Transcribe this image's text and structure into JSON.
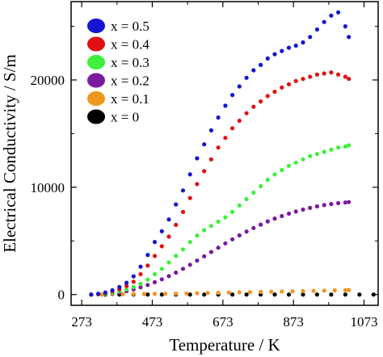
{
  "chart_data": {
    "type": "scatter",
    "xlabel": "Temperature / K",
    "ylabel": "Electrical Conductivity / S/m",
    "xlim": [
      243,
      1113
    ],
    "ylim": [
      -1000,
      27300
    ],
    "xticks": [
      273,
      473,
      673,
      873,
      1073
    ],
    "yticks": [
      0,
      10000,
      20000
    ],
    "grid": false,
    "legend_position": "top-left",
    "series": [
      {
        "name": "x = 0.5",
        "color": "#1414d2",
        "x": [
          300,
          320,
          340,
          360,
          380,
          400,
          420,
          440,
          460,
          480,
          500,
          520,
          540,
          560,
          580,
          600,
          620,
          640,
          660,
          680,
          700,
          720,
          740,
          760,
          780,
          800,
          820,
          840,
          860,
          880,
          900,
          920,
          940,
          960,
          980,
          1000,
          1020,
          1030
        ],
        "y": [
          0,
          80,
          200,
          400,
          700,
          1100,
          1700,
          2600,
          3700,
          4900,
          5900,
          7000,
          8400,
          9700,
          11200,
          12700,
          14000,
          15300,
          16500,
          17600,
          18600,
          19400,
          20200,
          20900,
          21400,
          22000,
          22400,
          22700,
          23000,
          23200,
          23500,
          24000,
          24700,
          25400,
          26000,
          26300,
          25000,
          24000
        ]
      },
      {
        "name": "x = 0.4",
        "color": "#e01010",
        "x": [
          300,
          320,
          340,
          360,
          380,
          400,
          420,
          440,
          460,
          480,
          500,
          520,
          540,
          560,
          580,
          600,
          620,
          640,
          660,
          680,
          700,
          720,
          740,
          760,
          780,
          800,
          820,
          840,
          860,
          880,
          900,
          920,
          940,
          960,
          980,
          1000,
          1020,
          1030
        ],
        "y": [
          0,
          50,
          150,
          300,
          500,
          800,
          1200,
          1900,
          2700,
          3600,
          4500,
          5400,
          6500,
          7700,
          9000,
          10300,
          11500,
          12600,
          13700,
          14600,
          15500,
          16200,
          16900,
          17500,
          18000,
          18500,
          18900,
          19300,
          19600,
          19900,
          20100,
          20300,
          20500,
          20600,
          20700,
          20500,
          20300,
          20100
        ]
      },
      {
        "name": "x = 0.3",
        "color": "#3cf03c",
        "x": [
          300,
          320,
          340,
          360,
          380,
          400,
          420,
          440,
          460,
          480,
          500,
          520,
          540,
          560,
          580,
          600,
          620,
          640,
          660,
          680,
          700,
          720,
          740,
          760,
          780,
          800,
          820,
          840,
          860,
          880,
          900,
          920,
          940,
          960,
          980,
          1000,
          1020,
          1030
        ],
        "y": [
          0,
          30,
          80,
          160,
          300,
          480,
          700,
          1000,
          1400,
          1900,
          2400,
          3000,
          3600,
          4200,
          4900,
          5500,
          6000,
          6400,
          6800,
          7200,
          7700,
          8300,
          8900,
          9500,
          10100,
          10700,
          11200,
          11600,
          12000,
          12300,
          12600,
          12900,
          13100,
          13300,
          13500,
          13700,
          13800,
          13900
        ]
      },
      {
        "name": "x = 0.2",
        "color": "#7a1aa0",
        "x": [
          300,
          320,
          340,
          360,
          380,
          400,
          420,
          440,
          460,
          480,
          500,
          520,
          540,
          560,
          580,
          600,
          620,
          640,
          660,
          680,
          700,
          720,
          740,
          760,
          780,
          800,
          820,
          840,
          860,
          880,
          900,
          920,
          940,
          960,
          980,
          1000,
          1020,
          1030
        ],
        "y": [
          0,
          20,
          60,
          120,
          200,
          320,
          480,
          680,
          900,
          1150,
          1420,
          1720,
          2050,
          2400,
          2780,
          3170,
          3570,
          3970,
          4370,
          4770,
          5150,
          5520,
          5870,
          6200,
          6520,
          6820,
          7080,
          7320,
          7540,
          7740,
          7920,
          8080,
          8220,
          8340,
          8440,
          8520,
          8580,
          8620
        ]
      },
      {
        "name": "x = 0.1",
        "color": "#f0961e",
        "x": [
          300,
          330,
          360,
          390,
          420,
          450,
          480,
          510,
          540,
          570,
          600,
          630,
          660,
          690,
          720,
          750,
          780,
          810,
          840,
          870,
          900,
          930,
          960,
          990,
          1020,
          1030
        ],
        "y": [
          0,
          10,
          20,
          35,
          50,
          60,
          70,
          80,
          95,
          110,
          130,
          150,
          170,
          190,
          210,
          230,
          250,
          270,
          290,
          310,
          330,
          350,
          370,
          390,
          410,
          420
        ]
      },
      {
        "name": "x = 0",
        "color": "#000000",
        "x": [
          300,
          340,
          380,
          420,
          460,
          500,
          540,
          580,
          620,
          660,
          700,
          740,
          780,
          820,
          860,
          900,
          940,
          980,
          1020,
          1060,
          1100
        ],
        "y": [
          0,
          0,
          0,
          0,
          0,
          0,
          0,
          0,
          0,
          0,
          0,
          0,
          0,
          0,
          0,
          0,
          0,
          0,
          0,
          0,
          0
        ]
      }
    ]
  }
}
